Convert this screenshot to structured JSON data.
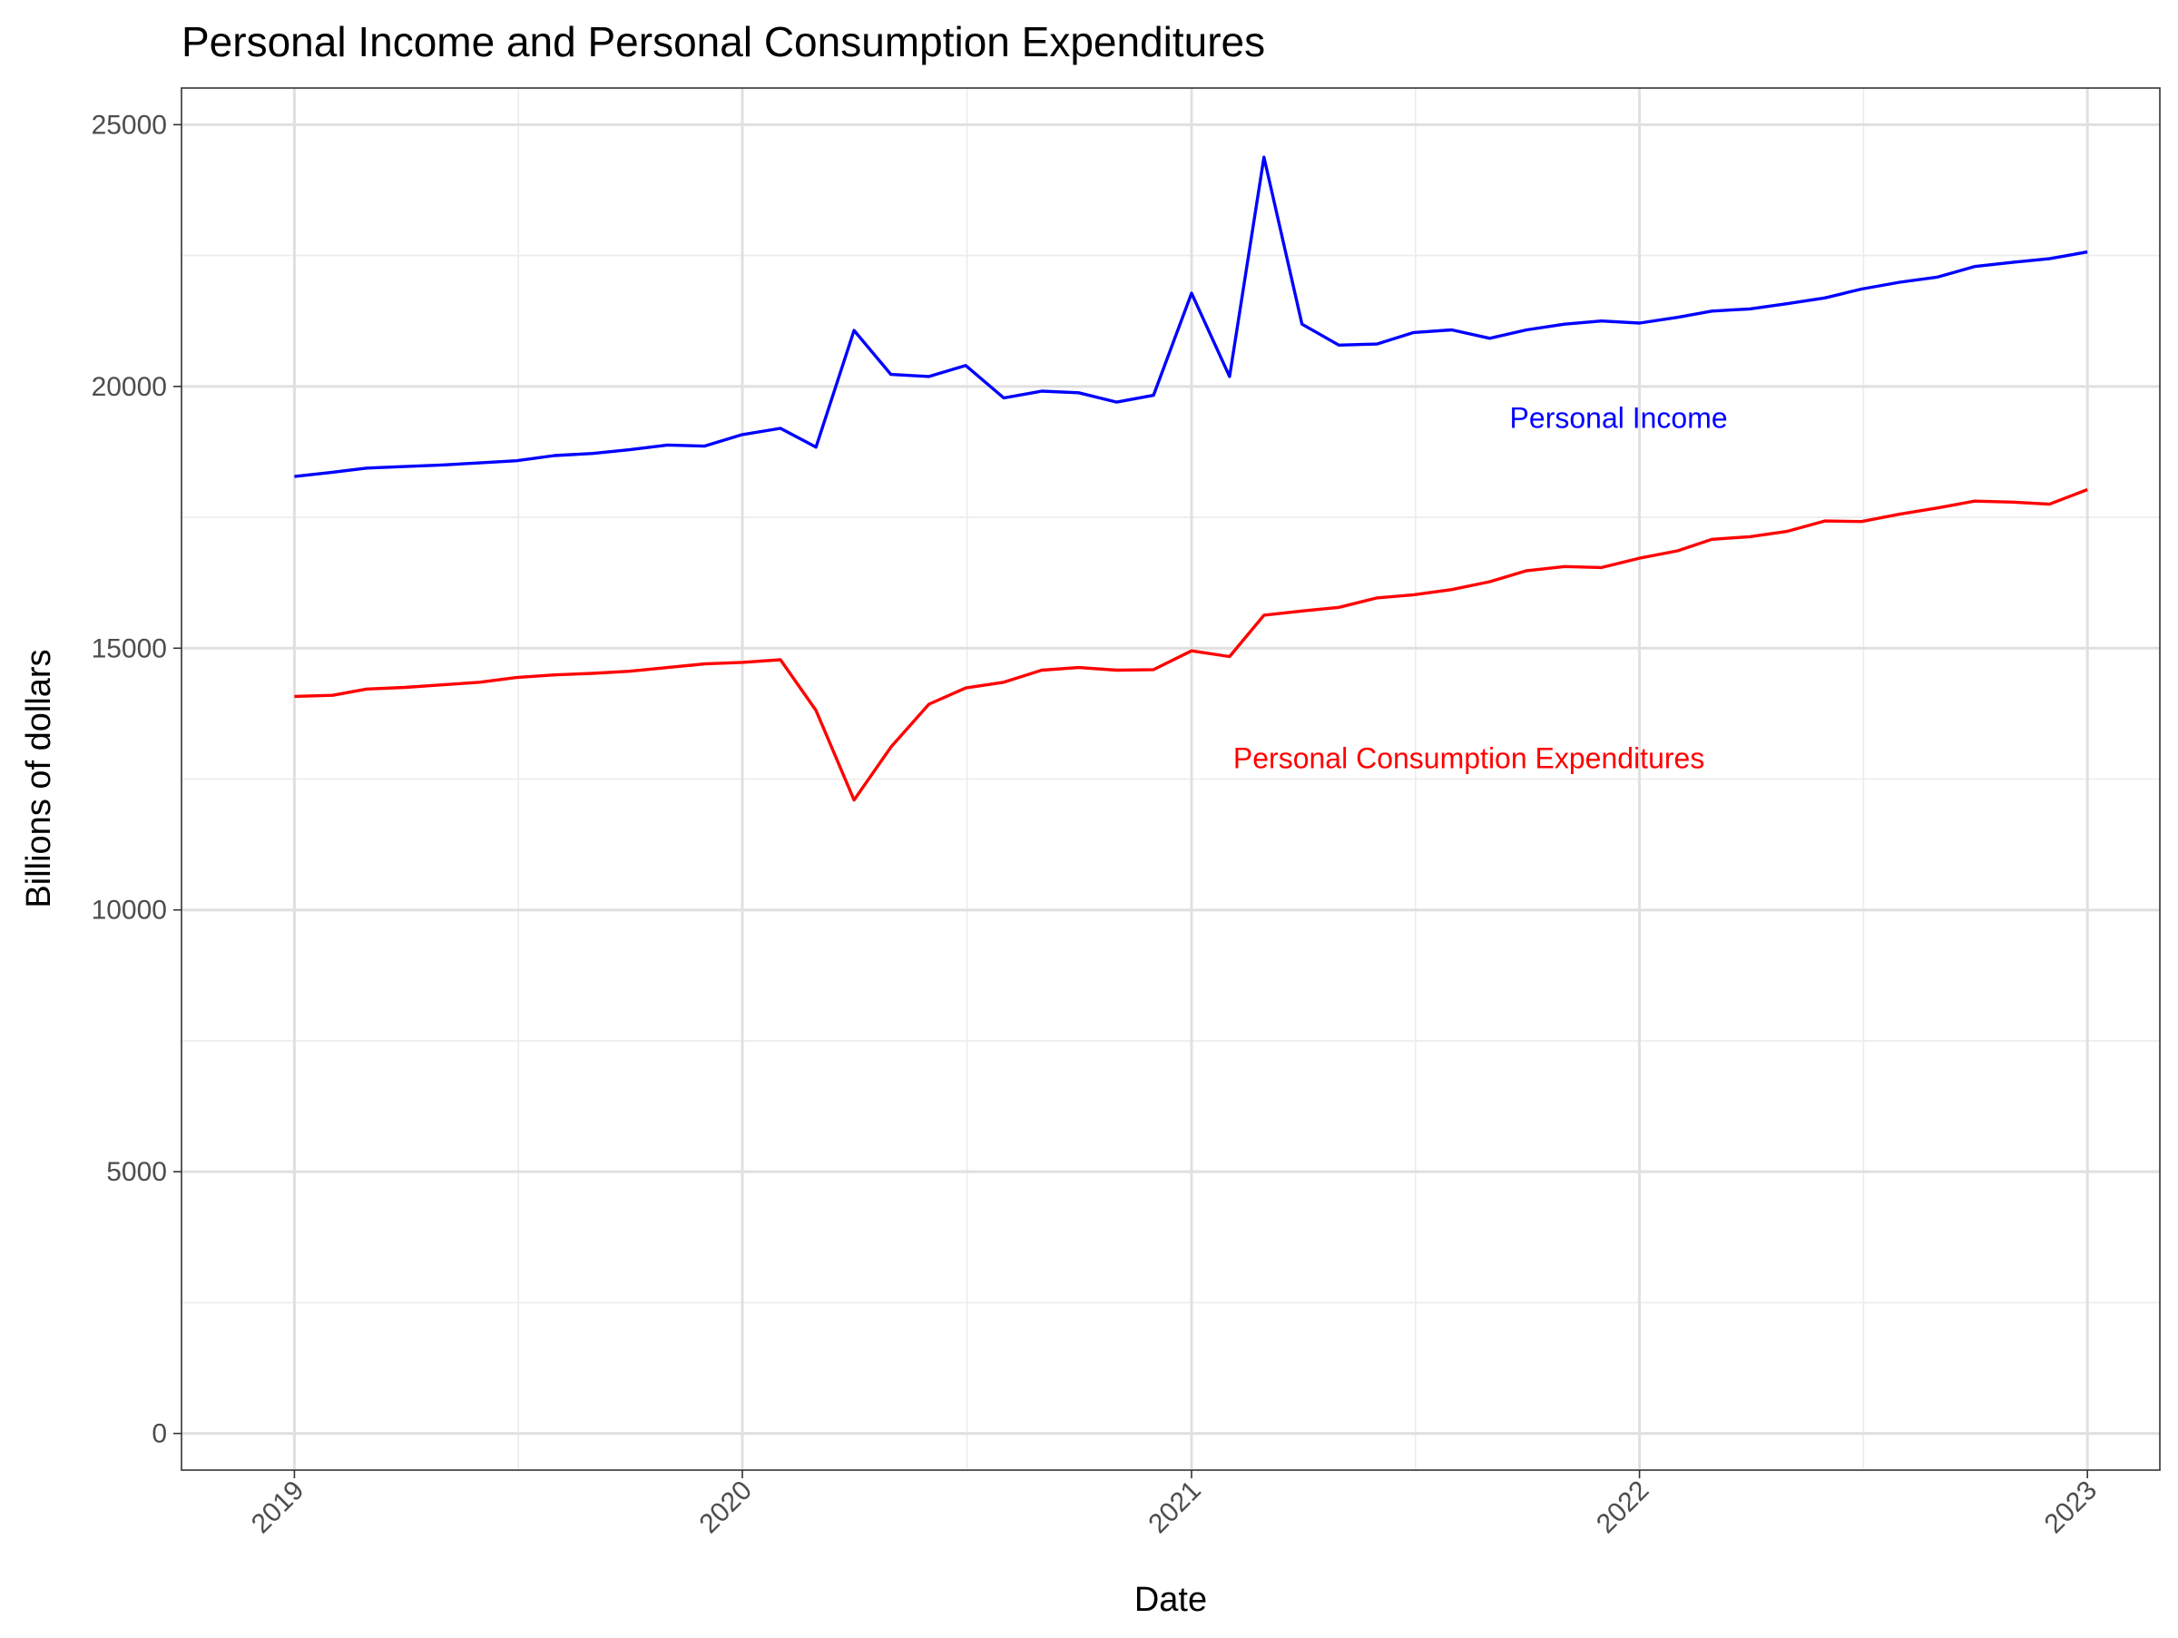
{
  "chart_data": {
    "type": "line",
    "title": "Personal Income and Personal Consumption Expenditures",
    "xlabel": "Date",
    "ylabel": "Billions of dollars",
    "ylim": [
      -700,
      25700
    ],
    "y_ticks": [
      0,
      5000,
      10000,
      15000,
      20000,
      25000
    ],
    "y_tick_labels": [
      "0",
      "5000",
      "10000",
      "15000",
      "20000",
      "25000"
    ],
    "x_range": [
      "2018-10-01",
      "2023-03-01"
    ],
    "x_ticks": [
      "2019-01-01",
      "2020-01-01",
      "2021-01-01",
      "2022-01-01",
      "2023-01-01"
    ],
    "x_tick_labels": [
      "2019",
      "2020",
      "2021",
      "2022",
      "2023"
    ],
    "grid": true,
    "x": [
      "2019-01-01",
      "2019-02-01",
      "2019-03-01",
      "2019-04-01",
      "2019-05-01",
      "2019-06-01",
      "2019-07-01",
      "2019-08-01",
      "2019-09-01",
      "2019-10-01",
      "2019-11-01",
      "2019-12-01",
      "2020-01-01",
      "2020-02-01",
      "2020-03-01",
      "2020-04-01",
      "2020-05-01",
      "2020-06-01",
      "2020-07-01",
      "2020-08-01",
      "2020-09-01",
      "2020-10-01",
      "2020-11-01",
      "2020-12-01",
      "2021-01-01",
      "2021-02-01",
      "2021-03-01",
      "2021-04-01",
      "2021-05-01",
      "2021-06-01",
      "2021-07-01",
      "2021-08-01",
      "2021-09-01",
      "2021-10-01",
      "2021-11-01",
      "2021-12-01",
      "2022-01-01",
      "2022-02-01",
      "2022-03-01",
      "2022-04-01",
      "2022-05-01",
      "2022-06-01",
      "2022-07-01",
      "2022-08-01",
      "2022-09-01",
      "2022-10-01",
      "2022-11-01",
      "2022-12-01",
      "2023-01-01"
    ],
    "series": [
      {
        "name": "Personal Income",
        "color": "#0000ff",
        "values": [
          18280,
          18360,
          18440,
          18470,
          18500,
          18540,
          18580,
          18680,
          18720,
          18790,
          18880,
          18860,
          19080,
          19200,
          18840,
          21070,
          20230,
          20190,
          20400,
          19780,
          19910,
          19880,
          19700,
          19830,
          21780,
          20190,
          24380,
          21190,
          20790,
          20810,
          21030,
          21080,
          20920,
          21080,
          21190,
          21250,
          21210,
          21320,
          21440,
          21480,
          21580,
          21690,
          21860,
          21990,
          22090,
          22290,
          22370,
          22440,
          22570
        ],
        "label": "Personal Income"
      },
      {
        "name": "Personal Consumption Expenditures",
        "color": "#ff0000",
        "values": [
          14080,
          14100,
          14220,
          14250,
          14300,
          14350,
          14440,
          14490,
          14520,
          14560,
          14630,
          14700,
          14730,
          14780,
          13810,
          12100,
          13110,
          13930,
          14240,
          14350,
          14580,
          14630,
          14580,
          14590,
          14950,
          14840,
          15630,
          15710,
          15780,
          15960,
          16020,
          16120,
          16270,
          16480,
          16560,
          16540,
          16720,
          16860,
          17080,
          17130,
          17230,
          17430,
          17420,
          17560,
          17680,
          17810,
          17790,
          17750,
          18030
        ],
        "label": "Personal Consumption Expenditures"
      }
    ]
  }
}
